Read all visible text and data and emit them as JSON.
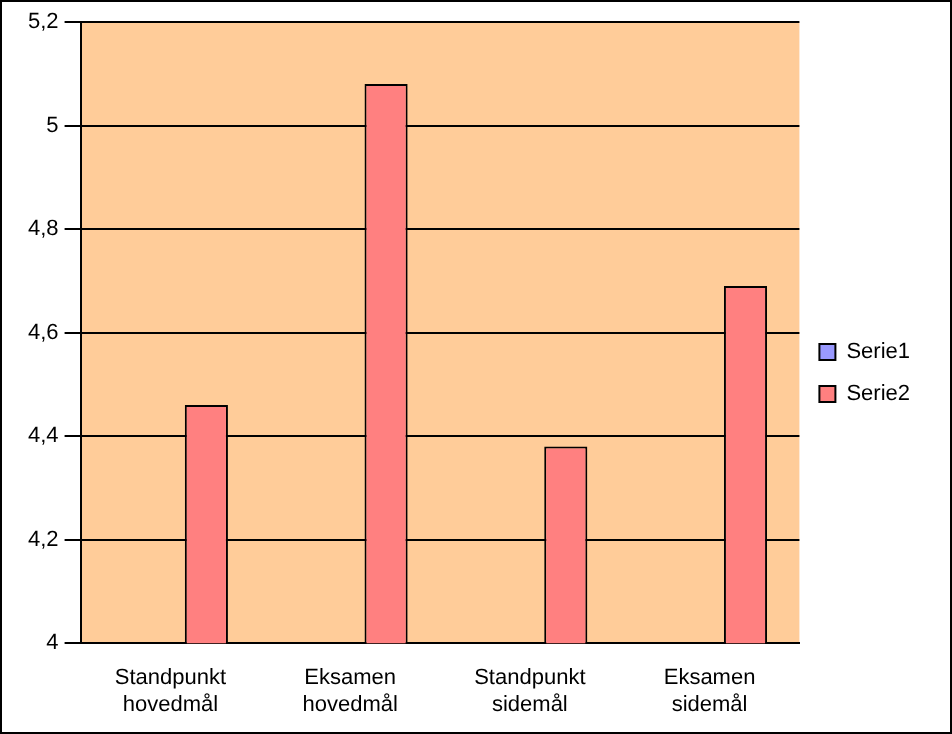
{
  "chart_data": {
    "type": "bar",
    "categories": [
      "Standpunkt hovedmål",
      "Eksamen hovedmål",
      "Standpunkt sidemål",
      "Eksamen sidemål"
    ],
    "series": [
      {
        "name": "Serie1",
        "color": "#9999ff",
        "values": [
          null,
          null,
          null,
          null
        ]
      },
      {
        "name": "Serie2",
        "color": "#ff8080",
        "values": [
          4.46,
          5.08,
          4.38,
          4.69
        ]
      }
    ],
    "ylim": [
      4,
      5.2
    ],
    "yticks": [
      {
        "value": 4,
        "label": "4"
      },
      {
        "value": 4.2,
        "label": "4,2"
      },
      {
        "value": 4.4,
        "label": "4,4"
      },
      {
        "value": 4.6,
        "label": "4,6"
      },
      {
        "value": 4.8,
        "label": "4,8"
      },
      {
        "value": 5,
        "label": "5"
      },
      {
        "value": 5.2,
        "label": "5,2"
      }
    ],
    "grid": "y",
    "legend": "right"
  }
}
